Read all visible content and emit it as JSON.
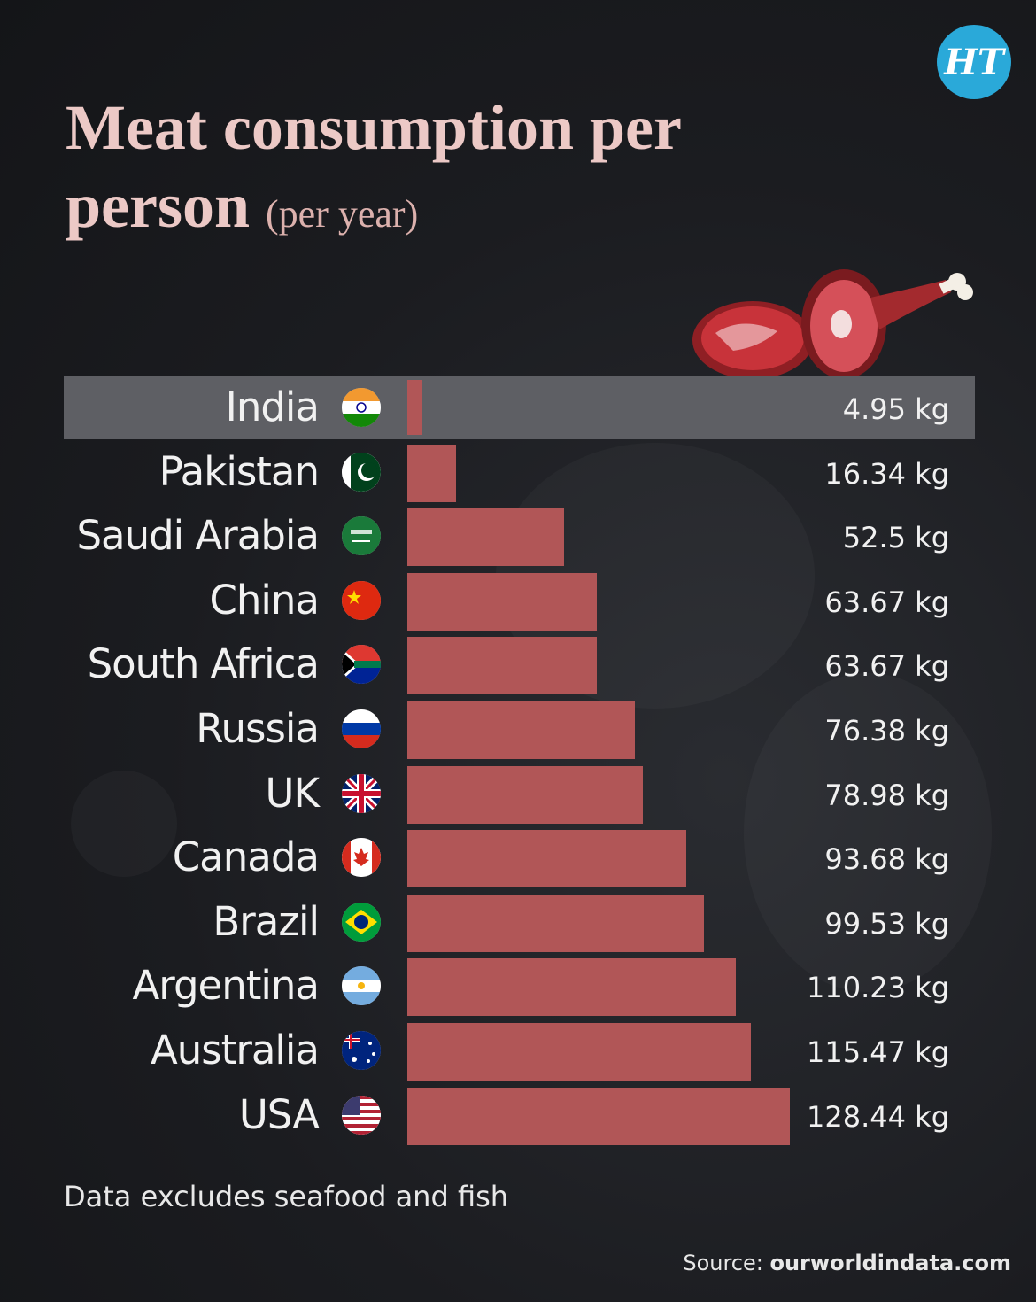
{
  "brand": {
    "logo_text": "HT"
  },
  "header": {
    "title": "Meat consumption per person",
    "subtitle": "(per year)"
  },
  "chart_data": {
    "type": "bar",
    "orientation": "horizontal",
    "title": "Meat consumption per person",
    "subtitle": "(per year)",
    "unit": "kg",
    "highlighted": "India",
    "categories": [
      "India",
      "Pakistan",
      "Saudi Arabia",
      "China",
      "South Africa",
      "Russia",
      "UK",
      "Canada",
      "Brazil",
      "Argentina",
      "Australia",
      "USA"
    ],
    "values": [
      4.95,
      16.34,
      52.5,
      63.67,
      63.67,
      76.38,
      78.98,
      93.68,
      99.53,
      110.23,
      115.47,
      128.44
    ],
    "value_labels": [
      "4.95 kg",
      "16.34 kg",
      "52.5 kg",
      "63.67 kg",
      "63.67 kg",
      "76.38 kg",
      "78.98 kg",
      "93.68 kg",
      "99.53 kg",
      "110.23 kg",
      "115.47 kg",
      "128.44 kg"
    ],
    "flags": [
      "india-flag-icon",
      "pakistan-flag-icon",
      "saudi-arabia-flag-icon",
      "china-flag-icon",
      "south-africa-flag-icon",
      "russia-flag-icon",
      "uk-flag-icon",
      "canada-flag-icon",
      "brazil-flag-icon",
      "argentina-flag-icon",
      "australia-flag-icon",
      "usa-flag-icon"
    ],
    "bar_color": "#b15657",
    "highlight_color": "#5e5f64",
    "xlim": [
      0,
      128.44
    ]
  },
  "footer": {
    "note": "Data excludes seafood and fish",
    "source_label": "Source:",
    "source_site": "ourworldindata.com"
  }
}
